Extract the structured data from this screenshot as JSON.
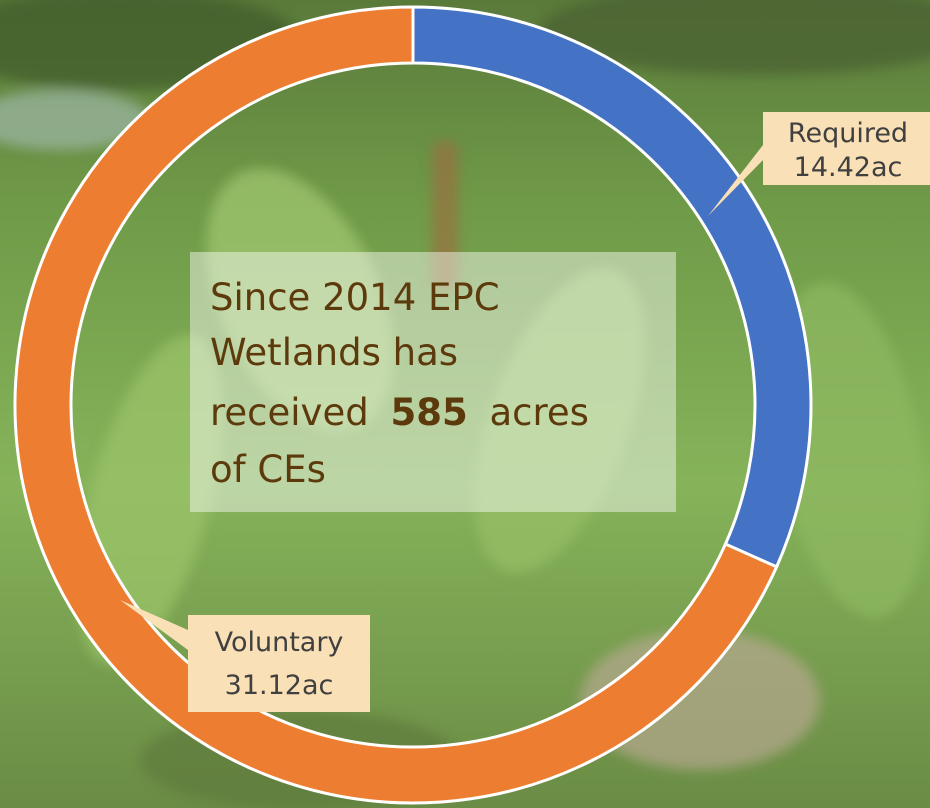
{
  "chart_data": {
    "type": "donut",
    "categories": [
      "Required",
      "Voluntary"
    ],
    "values": [
      14.42,
      31.12
    ],
    "value_labels": [
      "14.42ac",
      "31.12ac"
    ],
    "colors": [
      "#4472c4",
      "#ed7d31"
    ],
    "annotation": [
      "Since 2014 EPC",
      "Wetlands has",
      "received",
      "585",
      "acres",
      "of CEs"
    ]
  }
}
